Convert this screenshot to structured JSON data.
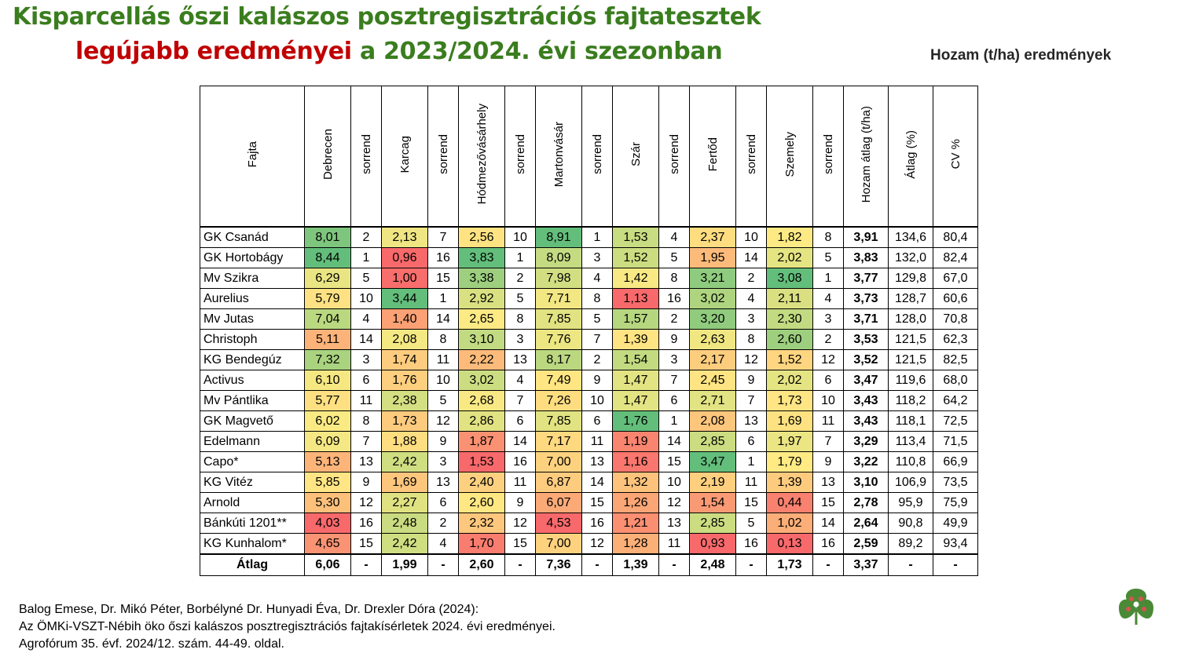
{
  "title": {
    "line1": "Kisparcellás őszi kalászos posztregisztrációs fajtatesztek",
    "line2_red": "legújabb eredményei",
    "line2_green": " a 2023/2024. évi szezonban"
  },
  "subtitle": "Hozam (t/ha) eredmények",
  "table": {
    "headers": [
      "Fajta",
      "Debrecen",
      "sorrend",
      "Karcag",
      "sorrend",
      "Hódmezővásárhely",
      "sorrend",
      "Martonvásár",
      "sorrend",
      "Szár",
      "sorrend",
      "Fertőd",
      "sorrend",
      "Szemely",
      "sorrend",
      "Hozam átlag (t/ha)",
      "Átlag (%)",
      "CV %"
    ],
    "rows": [
      [
        "GK Csanád",
        "8,01",
        "2",
        "2,13",
        "7",
        "2,56",
        "10",
        "8,91",
        "1",
        "1,53",
        "4",
        "2,37",
        "10",
        "1,82",
        "8",
        "3,91",
        "134,6",
        "80,4"
      ],
      [
        "GK Hortobágy",
        "8,44",
        "1",
        "0,96",
        "16",
        "3,83",
        "1",
        "8,09",
        "3",
        "1,52",
        "5",
        "1,95",
        "14",
        "2,02",
        "5",
        "3,83",
        "132,0",
        "82,4"
      ],
      [
        "Mv Szikra",
        "6,29",
        "5",
        "1,00",
        "15",
        "3,38",
        "2",
        "7,98",
        "4",
        "1,42",
        "8",
        "3,21",
        "2",
        "3,08",
        "1",
        "3,77",
        "129,8",
        "67,0"
      ],
      [
        "Aurelius",
        "5,79",
        "10",
        "3,44",
        "1",
        "2,92",
        "5",
        "7,71",
        "8",
        "1,13",
        "16",
        "3,02",
        "4",
        "2,11",
        "4",
        "3,73",
        "128,7",
        "60,6"
      ],
      [
        "Mv Jutas",
        "7,04",
        "4",
        "1,40",
        "14",
        "2,65",
        "8",
        "7,85",
        "5",
        "1,57",
        "2",
        "3,20",
        "3",
        "2,30",
        "3",
        "3,71",
        "128,0",
        "70,8"
      ],
      [
        "Christoph",
        "5,11",
        "14",
        "2,08",
        "8",
        "3,10",
        "3",
        "7,76",
        "7",
        "1,39",
        "9",
        "2,63",
        "8",
        "2,60",
        "2",
        "3,53",
        "121,5",
        "62,3"
      ],
      [
        "KG Bendegúz",
        "7,32",
        "3",
        "1,74",
        "11",
        "2,22",
        "13",
        "8,17",
        "2",
        "1,54",
        "3",
        "2,17",
        "12",
        "1,52",
        "12",
        "3,52",
        "121,5",
        "82,5"
      ],
      [
        "Activus",
        "6,10",
        "6",
        "1,76",
        "10",
        "3,02",
        "4",
        "7,49",
        "9",
        "1,47",
        "7",
        "2,45",
        "9",
        "2,02",
        "6",
        "3,47",
        "119,6",
        "68,0"
      ],
      [
        "Mv Pántlika",
        "5,77",
        "11",
        "2,38",
        "5",
        "2,68",
        "7",
        "7,26",
        "10",
        "1,47",
        "6",
        "2,71",
        "7",
        "1,73",
        "10",
        "3,43",
        "118,2",
        "64,2"
      ],
      [
        "GK Magvető",
        "6,02",
        "8",
        "1,73",
        "12",
        "2,86",
        "6",
        "7,85",
        "6",
        "1,76",
        "1",
        "2,08",
        "13",
        "1,69",
        "11",
        "3,43",
        "118,1",
        "72,5"
      ],
      [
        "Edelmann",
        "6,09",
        "7",
        "1,88",
        "9",
        "1,87",
        "14",
        "7,17",
        "11",
        "1,19",
        "14",
        "2,85",
        "6",
        "1,97",
        "7",
        "3,29",
        "113,4",
        "71,5"
      ],
      [
        "Capo*",
        "5,13",
        "13",
        "2,42",
        "3",
        "1,53",
        "16",
        "7,00",
        "13",
        "1,16",
        "15",
        "3,47",
        "1",
        "1,79",
        "9",
        "3,22",
        "110,8",
        "66,9"
      ],
      [
        "KG Vitéz",
        "5,85",
        "9",
        "1,69",
        "13",
        "2,40",
        "11",
        "6,87",
        "14",
        "1,32",
        "10",
        "2,19",
        "11",
        "1,39",
        "13",
        "3,10",
        "106,9",
        "73,5"
      ],
      [
        "Arnold",
        "5,30",
        "12",
        "2,27",
        "6",
        "2,60",
        "9",
        "6,07",
        "15",
        "1,26",
        "12",
        "1,54",
        "15",
        "0,44",
        "15",
        "2,78",
        "95,9",
        "75,9"
      ],
      [
        "Bánkúti 1201**",
        "4,03",
        "16",
        "2,48",
        "2",
        "2,32",
        "12",
        "4,53",
        "16",
        "1,21",
        "13",
        "2,85",
        "5",
        "1,02",
        "14",
        "2,64",
        "90,8",
        "49,9"
      ],
      [
        "KG Kunhalom*",
        "4,65",
        "15",
        "2,42",
        "4",
        "1,70",
        "15",
        "7,00",
        "12",
        "1,28",
        "11",
        "0,93",
        "16",
        "0,13",
        "16",
        "2,59",
        "89,2",
        "93,4"
      ]
    ],
    "average_row": [
      "Átlag",
      "6,06",
      "-",
      "1,99",
      "-",
      "2,60",
      "-",
      "7,36",
      "-",
      "1,39",
      "-",
      "2,48",
      "-",
      "1,73",
      "-",
      "3,37",
      "-",
      "-"
    ],
    "heat_colors": {
      "scale": [
        "#f8696b",
        "#fbaa77",
        "#ffeb84",
        "#b1d580",
        "#63be7b"
      ],
      "colored_columns": [
        1,
        3,
        5,
        7,
        9,
        11,
        13
      ]
    }
  },
  "source": {
    "line1": "Balog Emese, Dr. Mikó Péter, Borbélyné Dr. Hunyadi Éva, Dr. Drexler Dóra (2024):",
    "line2": "Az ÖMKi-VSZT-Nébih öko őszi kalászos posztregisztrációs fajtakísérletek 2024. évi eredményei.",
    "line3": "Agrofórum 35. évf. 2024/12. szám. 44-49. oldal."
  },
  "logo_icon": "clover-logo-icon"
}
